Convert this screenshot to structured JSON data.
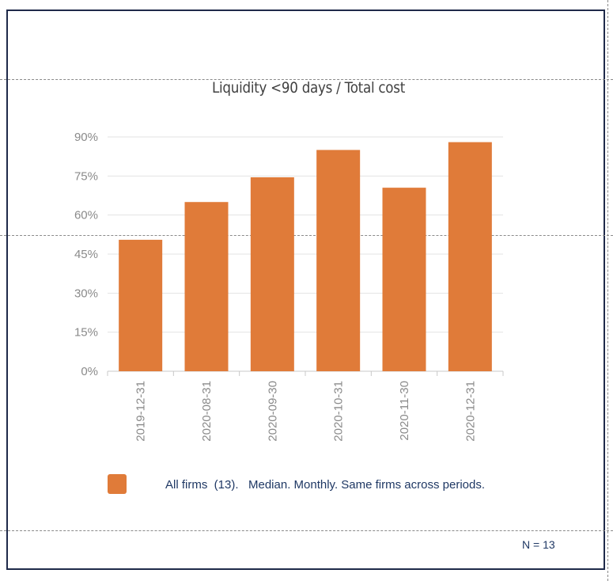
{
  "colors": {
    "bar": "#E07B39",
    "frame": "#1f2a4a",
    "grid": "#e3e3e3",
    "text": "#8a8a8a",
    "legend_text": "#1f3864"
  },
  "legend": {
    "label": "All firms  (13).   Median. Monthly. Same firms across periods."
  },
  "footer": {
    "n_label": "N = 13"
  },
  "chart_data": {
    "type": "bar",
    "title": "Liquidity <90 days / Total cost",
    "xlabel": "",
    "ylabel": "",
    "categories": [
      "2019-12-31",
      "2020-08-31",
      "2020-09-30",
      "2020-10-31",
      "2020-11-30",
      "2020-12-31"
    ],
    "series": [
      {
        "name": "All firms  (13).   Median. Monthly. Same firms across periods.",
        "values": [
          50.5,
          65,
          74.5,
          85,
          70.5,
          88
        ]
      }
    ],
    "ylim": [
      0,
      90
    ],
    "yticks": [
      0,
      15,
      30,
      45,
      60,
      75,
      90
    ],
    "ytick_labels": [
      "0%",
      "15%",
      "30%",
      "45%",
      "60%",
      "75%",
      "90%"
    ],
    "grid": true,
    "legend_position": "bottom"
  }
}
